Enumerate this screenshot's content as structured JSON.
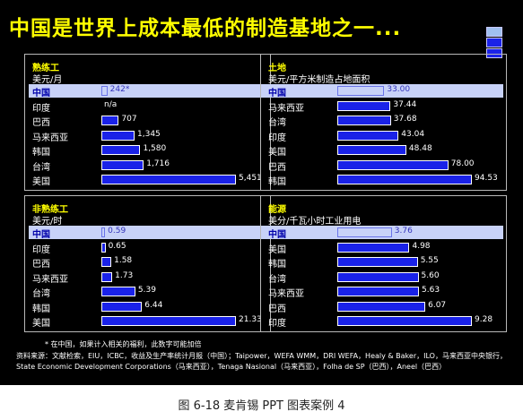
{
  "title": "中国是世界上成本最低的制造基地之一...",
  "legend_colors": [
    "#a0c0f0",
    "#1a22e8",
    "#1a22e8"
  ],
  "chart_data": [
    {
      "type": "bar",
      "title": "熟练工",
      "ylabel": "美元/月",
      "categories": [
        "中国",
        "印度",
        "巴西",
        "马来西亚",
        "韩国",
        "台湾",
        "美国"
      ],
      "values": [
        242,
        null,
        707,
        1345,
        1580,
        1716,
        5451
      ],
      "value_labels": [
        "242*",
        "n/a",
        "707",
        "1,345",
        "1,580",
        "1,716",
        "5,451"
      ],
      "highlight": "中国"
    },
    {
      "type": "bar",
      "title": "土地",
      "ylabel": "美元/平方米制造占地面积",
      "categories": [
        "中国",
        "马来西亚",
        "台湾",
        "印度",
        "美国",
        "巴西",
        "韩国"
      ],
      "values": [
        33.0,
        37.44,
        37.68,
        43.04,
        48.48,
        78.0,
        94.53
      ],
      "value_labels": [
        "33.00",
        "37.44",
        "37.68",
        "43.04",
        "48.48",
        "78.00",
        "94.53"
      ],
      "highlight": "中国"
    },
    {
      "type": "bar",
      "title": "非熟练工",
      "ylabel": "美元/时",
      "categories": [
        "中国",
        "印度",
        "巴西",
        "马来西亚",
        "台湾",
        "韩国",
        "美国"
      ],
      "values": [
        0.59,
        0.65,
        1.58,
        1.73,
        5.39,
        6.44,
        21.33
      ],
      "value_labels": [
        "0.59",
        "0.65",
        "1.58",
        "1.73",
        "5.39",
        "6.44",
        "21.33"
      ],
      "highlight": "中国"
    },
    {
      "type": "bar",
      "title": "能源",
      "ylabel": "美分/千瓦小时工业用电",
      "categories": [
        "中国",
        "美国",
        "韩国",
        "台湾",
        "马来西亚",
        "巴西",
        "印度"
      ],
      "values": [
        3.76,
        4.98,
        5.55,
        5.6,
        5.63,
        6.07,
        9.28
      ],
      "value_labels": [
        "3.76",
        "4.98",
        "5.55",
        "5.60",
        "5.63",
        "6.07",
        "9.28"
      ],
      "highlight": "中国"
    }
  ],
  "footnote": "* 在中国，如果计入相关的福利，此数字可能加倍",
  "sources": "资料来源：文献检索，EIU，ICBC，收益及生产率统计月报（中国）；Taipower，WEFA WMM，DRI WEFA，Healy & Baker，ILO，马来西亚中央银行，State Economic Development Corporations（马来西亚），Tenaga Nasional（马来西亚），Folha de SP（巴西），Aneel（巴西）",
  "caption": "图 6-18 麦肯锡 PPT 图表案例 4"
}
